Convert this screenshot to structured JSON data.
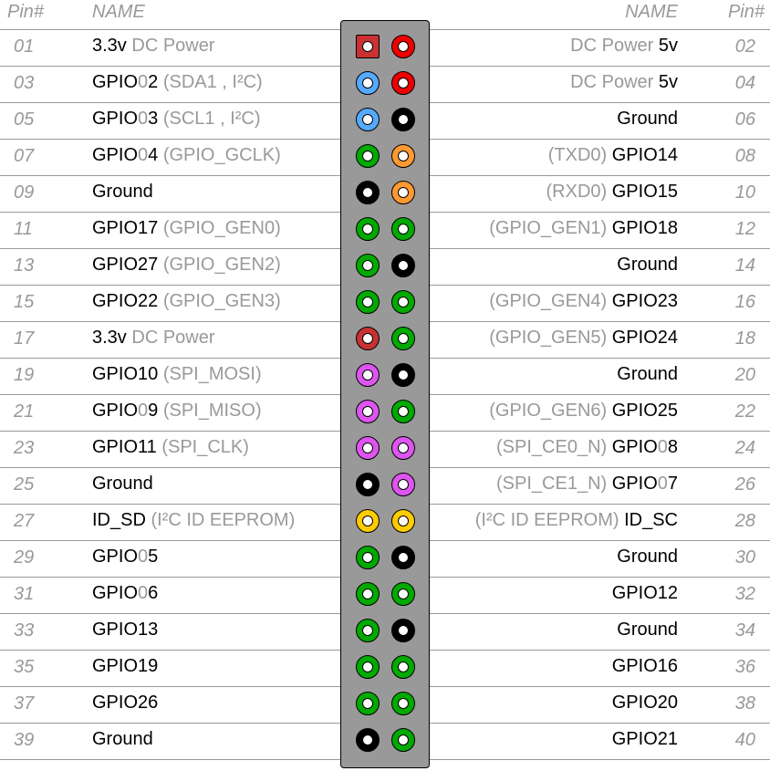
{
  "header": {
    "pin_left": "Pin#",
    "name_left": "NAME",
    "name_right": "NAME",
    "pin_right": "Pin#"
  },
  "colors": {
    "power5": "#ee0000",
    "power33": "#c83232",
    "i2c": "#55aaff",
    "ground": "#000000",
    "gpio": "#00aa00",
    "uart": "#ff9933",
    "spi": "#dd55ee",
    "eeprom": "#ffcc00",
    "board": "#999999"
  },
  "rows": [
    {
      "left": {
        "pin": "01",
        "type": "power33",
        "shape": "square",
        "name": [
          {
            "t": "3.3v",
            "c": "k"
          },
          {
            "t": " DC Power",
            "c": "g"
          }
        ]
      },
      "right": {
        "pin": "02",
        "type": "power5",
        "name": [
          {
            "t": "DC Power ",
            "c": "g"
          },
          {
            "t": "5v",
            "c": "k"
          }
        ]
      }
    },
    {
      "left": {
        "pin": "03",
        "type": "i2c",
        "name": [
          {
            "t": "GPIO",
            "c": "k"
          },
          {
            "t": "0",
            "c": "g"
          },
          {
            "t": "2",
            "c": "k"
          },
          {
            "t": " (SDA1 , I²C)",
            "c": "g"
          }
        ]
      },
      "right": {
        "pin": "04",
        "type": "power5",
        "name": [
          {
            "t": "DC Power ",
            "c": "g"
          },
          {
            "t": "5v",
            "c": "k"
          }
        ]
      }
    },
    {
      "left": {
        "pin": "05",
        "type": "i2c",
        "name": [
          {
            "t": "GPIO",
            "c": "k"
          },
          {
            "t": "0",
            "c": "g"
          },
          {
            "t": "3",
            "c": "k"
          },
          {
            "t": " (SCL1 , I²C)",
            "c": "g"
          }
        ]
      },
      "right": {
        "pin": "06",
        "type": "ground",
        "name": [
          {
            "t": "Ground",
            "c": "k"
          }
        ]
      }
    },
    {
      "left": {
        "pin": "07",
        "type": "gpio",
        "name": [
          {
            "t": "GPIO",
            "c": "k"
          },
          {
            "t": "0",
            "c": "g"
          },
          {
            "t": "4",
            "c": "k"
          },
          {
            "t": " (GPIO_GCLK)",
            "c": "g"
          }
        ]
      },
      "right": {
        "pin": "08",
        "type": "uart",
        "name": [
          {
            "t": "(TXD0) ",
            "c": "g"
          },
          {
            "t": "GPIO14",
            "c": "k"
          }
        ]
      }
    },
    {
      "left": {
        "pin": "09",
        "type": "ground",
        "name": [
          {
            "t": "Ground",
            "c": "k"
          }
        ]
      },
      "right": {
        "pin": "10",
        "type": "uart",
        "name": [
          {
            "t": "(RXD0) ",
            "c": "g"
          },
          {
            "t": "GPIO15",
            "c": "k"
          }
        ]
      }
    },
    {
      "left": {
        "pin": "11",
        "type": "gpio",
        "name": [
          {
            "t": "GPIO17",
            "c": "k"
          },
          {
            "t": " (GPIO_GEN0)",
            "c": "g"
          }
        ]
      },
      "right": {
        "pin": "12",
        "type": "gpio",
        "name": [
          {
            "t": "(GPIO_GEN1) ",
            "c": "g"
          },
          {
            "t": "GPIO18",
            "c": "k"
          }
        ]
      }
    },
    {
      "left": {
        "pin": "13",
        "type": "gpio",
        "name": [
          {
            "t": "GPIO27",
            "c": "k"
          },
          {
            "t": " (GPIO_GEN2)",
            "c": "g"
          }
        ]
      },
      "right": {
        "pin": "14",
        "type": "ground",
        "name": [
          {
            "t": "Ground",
            "c": "k"
          }
        ]
      }
    },
    {
      "left": {
        "pin": "15",
        "type": "gpio",
        "name": [
          {
            "t": "GPIO22",
            "c": "k"
          },
          {
            "t": " (GPIO_GEN3)",
            "c": "g"
          }
        ]
      },
      "right": {
        "pin": "16",
        "type": "gpio",
        "name": [
          {
            "t": "(GPIO_GEN4) ",
            "c": "g"
          },
          {
            "t": "GPIO23",
            "c": "k"
          }
        ]
      }
    },
    {
      "left": {
        "pin": "17",
        "type": "power33",
        "name": [
          {
            "t": "3.3v",
            "c": "k"
          },
          {
            "t": " DC Power",
            "c": "g"
          }
        ]
      },
      "right": {
        "pin": "18",
        "type": "gpio",
        "name": [
          {
            "t": "(GPIO_GEN5) ",
            "c": "g"
          },
          {
            "t": "GPIO24",
            "c": "k"
          }
        ]
      }
    },
    {
      "left": {
        "pin": "19",
        "type": "spi",
        "name": [
          {
            "t": "GPIO10",
            "c": "k"
          },
          {
            "t": " (SPI_MOSI)",
            "c": "g"
          }
        ]
      },
      "right": {
        "pin": "20",
        "type": "ground",
        "name": [
          {
            "t": "Ground",
            "c": "k"
          }
        ]
      }
    },
    {
      "left": {
        "pin": "21",
        "type": "spi",
        "name": [
          {
            "t": "GPIO",
            "c": "k"
          },
          {
            "t": "0",
            "c": "g"
          },
          {
            "t": "9",
            "c": "k"
          },
          {
            "t": " (SPI_MISO)",
            "c": "g"
          }
        ]
      },
      "right": {
        "pin": "22",
        "type": "gpio",
        "name": [
          {
            "t": "(GPIO_GEN6) ",
            "c": "g"
          },
          {
            "t": "GPIO25",
            "c": "k"
          }
        ]
      }
    },
    {
      "left": {
        "pin": "23",
        "type": "spi",
        "name": [
          {
            "t": "GPIO11",
            "c": "k"
          },
          {
            "t": " (SPI_CLK)",
            "c": "g"
          }
        ]
      },
      "right": {
        "pin": "24",
        "type": "spi",
        "name": [
          {
            "t": "(SPI_CE0_N) ",
            "c": "g"
          },
          {
            "t": "GPIO",
            "c": "k"
          },
          {
            "t": "0",
            "c": "g"
          },
          {
            "t": "8",
            "c": "k"
          }
        ]
      }
    },
    {
      "left": {
        "pin": "25",
        "type": "ground",
        "name": [
          {
            "t": "Ground",
            "c": "k"
          }
        ]
      },
      "right": {
        "pin": "26",
        "type": "spi",
        "name": [
          {
            "t": "(SPI_CE1_N) ",
            "c": "g"
          },
          {
            "t": "GPIO",
            "c": "k"
          },
          {
            "t": "0",
            "c": "g"
          },
          {
            "t": "7",
            "c": "k"
          }
        ]
      }
    },
    {
      "left": {
        "pin": "27",
        "type": "eeprom",
        "name": [
          {
            "t": "ID_SD",
            "c": "k"
          },
          {
            "t": " (I²C ID EEPROM)",
            "c": "g"
          }
        ]
      },
      "right": {
        "pin": "28",
        "type": "eeprom",
        "name": [
          {
            "t": "(I²C ID EEPROM) ",
            "c": "g"
          },
          {
            "t": "ID_SC",
            "c": "k"
          }
        ]
      }
    },
    {
      "left": {
        "pin": "29",
        "type": "gpio",
        "name": [
          {
            "t": "GPIO",
            "c": "k"
          },
          {
            "t": "0",
            "c": "g"
          },
          {
            "t": "5",
            "c": "k"
          }
        ]
      },
      "right": {
        "pin": "30",
        "type": "ground",
        "name": [
          {
            "t": "Ground",
            "c": "k"
          }
        ]
      }
    },
    {
      "left": {
        "pin": "31",
        "type": "gpio",
        "name": [
          {
            "t": "GPIO",
            "c": "k"
          },
          {
            "t": "0",
            "c": "g"
          },
          {
            "t": "6",
            "c": "k"
          }
        ]
      },
      "right": {
        "pin": "32",
        "type": "gpio",
        "name": [
          {
            "t": "GPIO12",
            "c": "k"
          }
        ]
      }
    },
    {
      "left": {
        "pin": "33",
        "type": "gpio",
        "name": [
          {
            "t": "GPIO13",
            "c": "k"
          }
        ]
      },
      "right": {
        "pin": "34",
        "type": "ground",
        "name": [
          {
            "t": "Ground",
            "c": "k"
          }
        ]
      }
    },
    {
      "left": {
        "pin": "35",
        "type": "gpio",
        "name": [
          {
            "t": "GPIO19",
            "c": "k"
          }
        ]
      },
      "right": {
        "pin": "36",
        "type": "gpio",
        "name": [
          {
            "t": "GPIO16",
            "c": "k"
          }
        ]
      }
    },
    {
      "left": {
        "pin": "37",
        "type": "gpio",
        "name": [
          {
            "t": "GPIO26",
            "c": "k"
          }
        ]
      },
      "right": {
        "pin": "38",
        "type": "gpio",
        "name": [
          {
            "t": "GPIO20",
            "c": "k"
          }
        ]
      }
    },
    {
      "left": {
        "pin": "39",
        "type": "ground",
        "name": [
          {
            "t": "Ground",
            "c": "k"
          }
        ]
      },
      "right": {
        "pin": "40",
        "type": "gpio",
        "name": [
          {
            "t": "GPIO21",
            "c": "k"
          }
        ]
      }
    }
  ]
}
